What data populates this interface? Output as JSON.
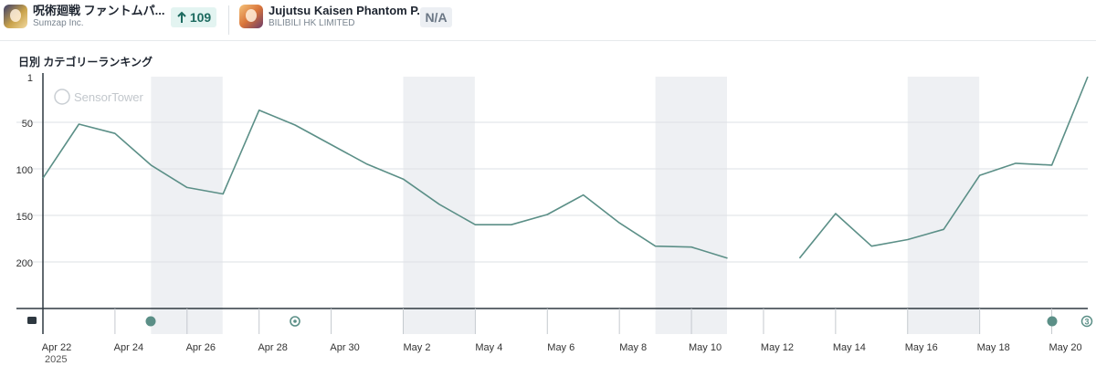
{
  "header": {
    "app1": {
      "name": "呪術廻戦 ファントムパ...",
      "publisher": "Sumzap Inc.",
      "change": "109",
      "change_icon": "arrow-up-icon"
    },
    "app2": {
      "name": "Jujutsu Kaisen Phantom P...",
      "publisher": "BILIBILI HK LIMITED",
      "change": "N/A"
    }
  },
  "chart_title": "日別 カテゴリーランキング",
  "watermark": "SensorTower",
  "chart_data": {
    "type": "line",
    "title": "日別 カテゴリーランキング",
    "xlabel": "",
    "ylabel": "",
    "y_inverted": true,
    "ylim": [
      1,
      250
    ],
    "y_ticks": [
      "1",
      "50",
      "100",
      "150",
      "200"
    ],
    "x_tick_labels": [
      "Apr 22",
      "Apr 24",
      "Apr 26",
      "Apr 28",
      "Apr 30",
      "May 2",
      "May 4",
      "May 6",
      "May 8",
      "May 10",
      "May 12",
      "May 14",
      "May 16",
      "May 18",
      "May 20"
    ],
    "year_label": "2025",
    "x": [
      "Apr 22",
      "Apr 23",
      "Apr 24",
      "Apr 25",
      "Apr 26",
      "Apr 27",
      "Apr 28",
      "Apr 29",
      "Apr 30",
      "May 1",
      "May 2",
      "May 3",
      "May 4",
      "May 5",
      "May 6",
      "May 7",
      "May 8",
      "May 9",
      "May 10",
      "May 11",
      "May 12",
      "May 13",
      "May 14",
      "May 15",
      "May 16",
      "May 17",
      "May 18",
      "May 19",
      "May 20",
      "May 21"
    ],
    "series": [
      {
        "color": "#5b8f87",
        "values": [
          110,
          52,
          62,
          96,
          120,
          127,
          37,
          53,
          74,
          95,
          111,
          138,
          160,
          160,
          149,
          128,
          158,
          183,
          184,
          196,
          null,
          196,
          148,
          183,
          176,
          165,
          107,
          94,
          96,
          1
        ]
      }
    ],
    "weekend_bands": [
      [
        "Apr 25",
        "Apr 26"
      ],
      [
        "May 2",
        "May 3"
      ],
      [
        "May 9",
        "May 10"
      ],
      [
        "May 16",
        "May 17"
      ]
    ],
    "grid": true,
    "legend": "none"
  },
  "events": [
    {
      "icon": "dot-marker-icon"
    },
    {
      "icon": "update-marker-icon"
    },
    {
      "icon": "dot-marker-icon"
    },
    {
      "icon": "count-marker-icon",
      "count": "3"
    }
  ],
  "colors": {
    "line": "#5b8f87",
    "band": "#eef0f3",
    "grid": "#dde1e5",
    "badge_up_bg": "#e3f4f1",
    "badge_up_text": "#1d6b60"
  }
}
